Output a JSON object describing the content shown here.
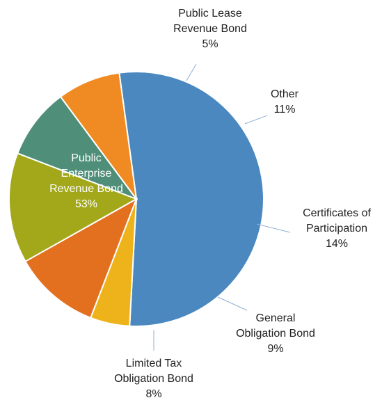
{
  "chart_data": {
    "type": "pie",
    "title": "",
    "slices": [
      {
        "label_lines": [
          "Public",
          "Enterprise",
          "Revenue Bond"
        ],
        "pct_text": "53%",
        "value": 53,
        "color": "#4a88bf"
      },
      {
        "label_lines": [
          "Public Lease",
          "Revenue Bond"
        ],
        "pct_text": "5%",
        "value": 5,
        "color": "#eeb21a"
      },
      {
        "label_lines": [
          "Other"
        ],
        "pct_text": "11%",
        "value": 11,
        "color": "#e2701f"
      },
      {
        "label_lines": [
          "Certificates of",
          "Participation"
        ],
        "pct_text": "14%",
        "value": 14,
        "color": "#a2a81a"
      },
      {
        "label_lines": [
          "General",
          "Obligation Bond"
        ],
        "pct_text": "9%",
        "value": 9,
        "color": "#4f8f79"
      },
      {
        "label_lines": [
          "Limited Tax",
          "Obligation Bond"
        ],
        "pct_text": "8%",
        "value": 8,
        "color": "#ef8b22"
      }
    ],
    "legend": "none",
    "leader_line_color": "#8cb0d3"
  }
}
